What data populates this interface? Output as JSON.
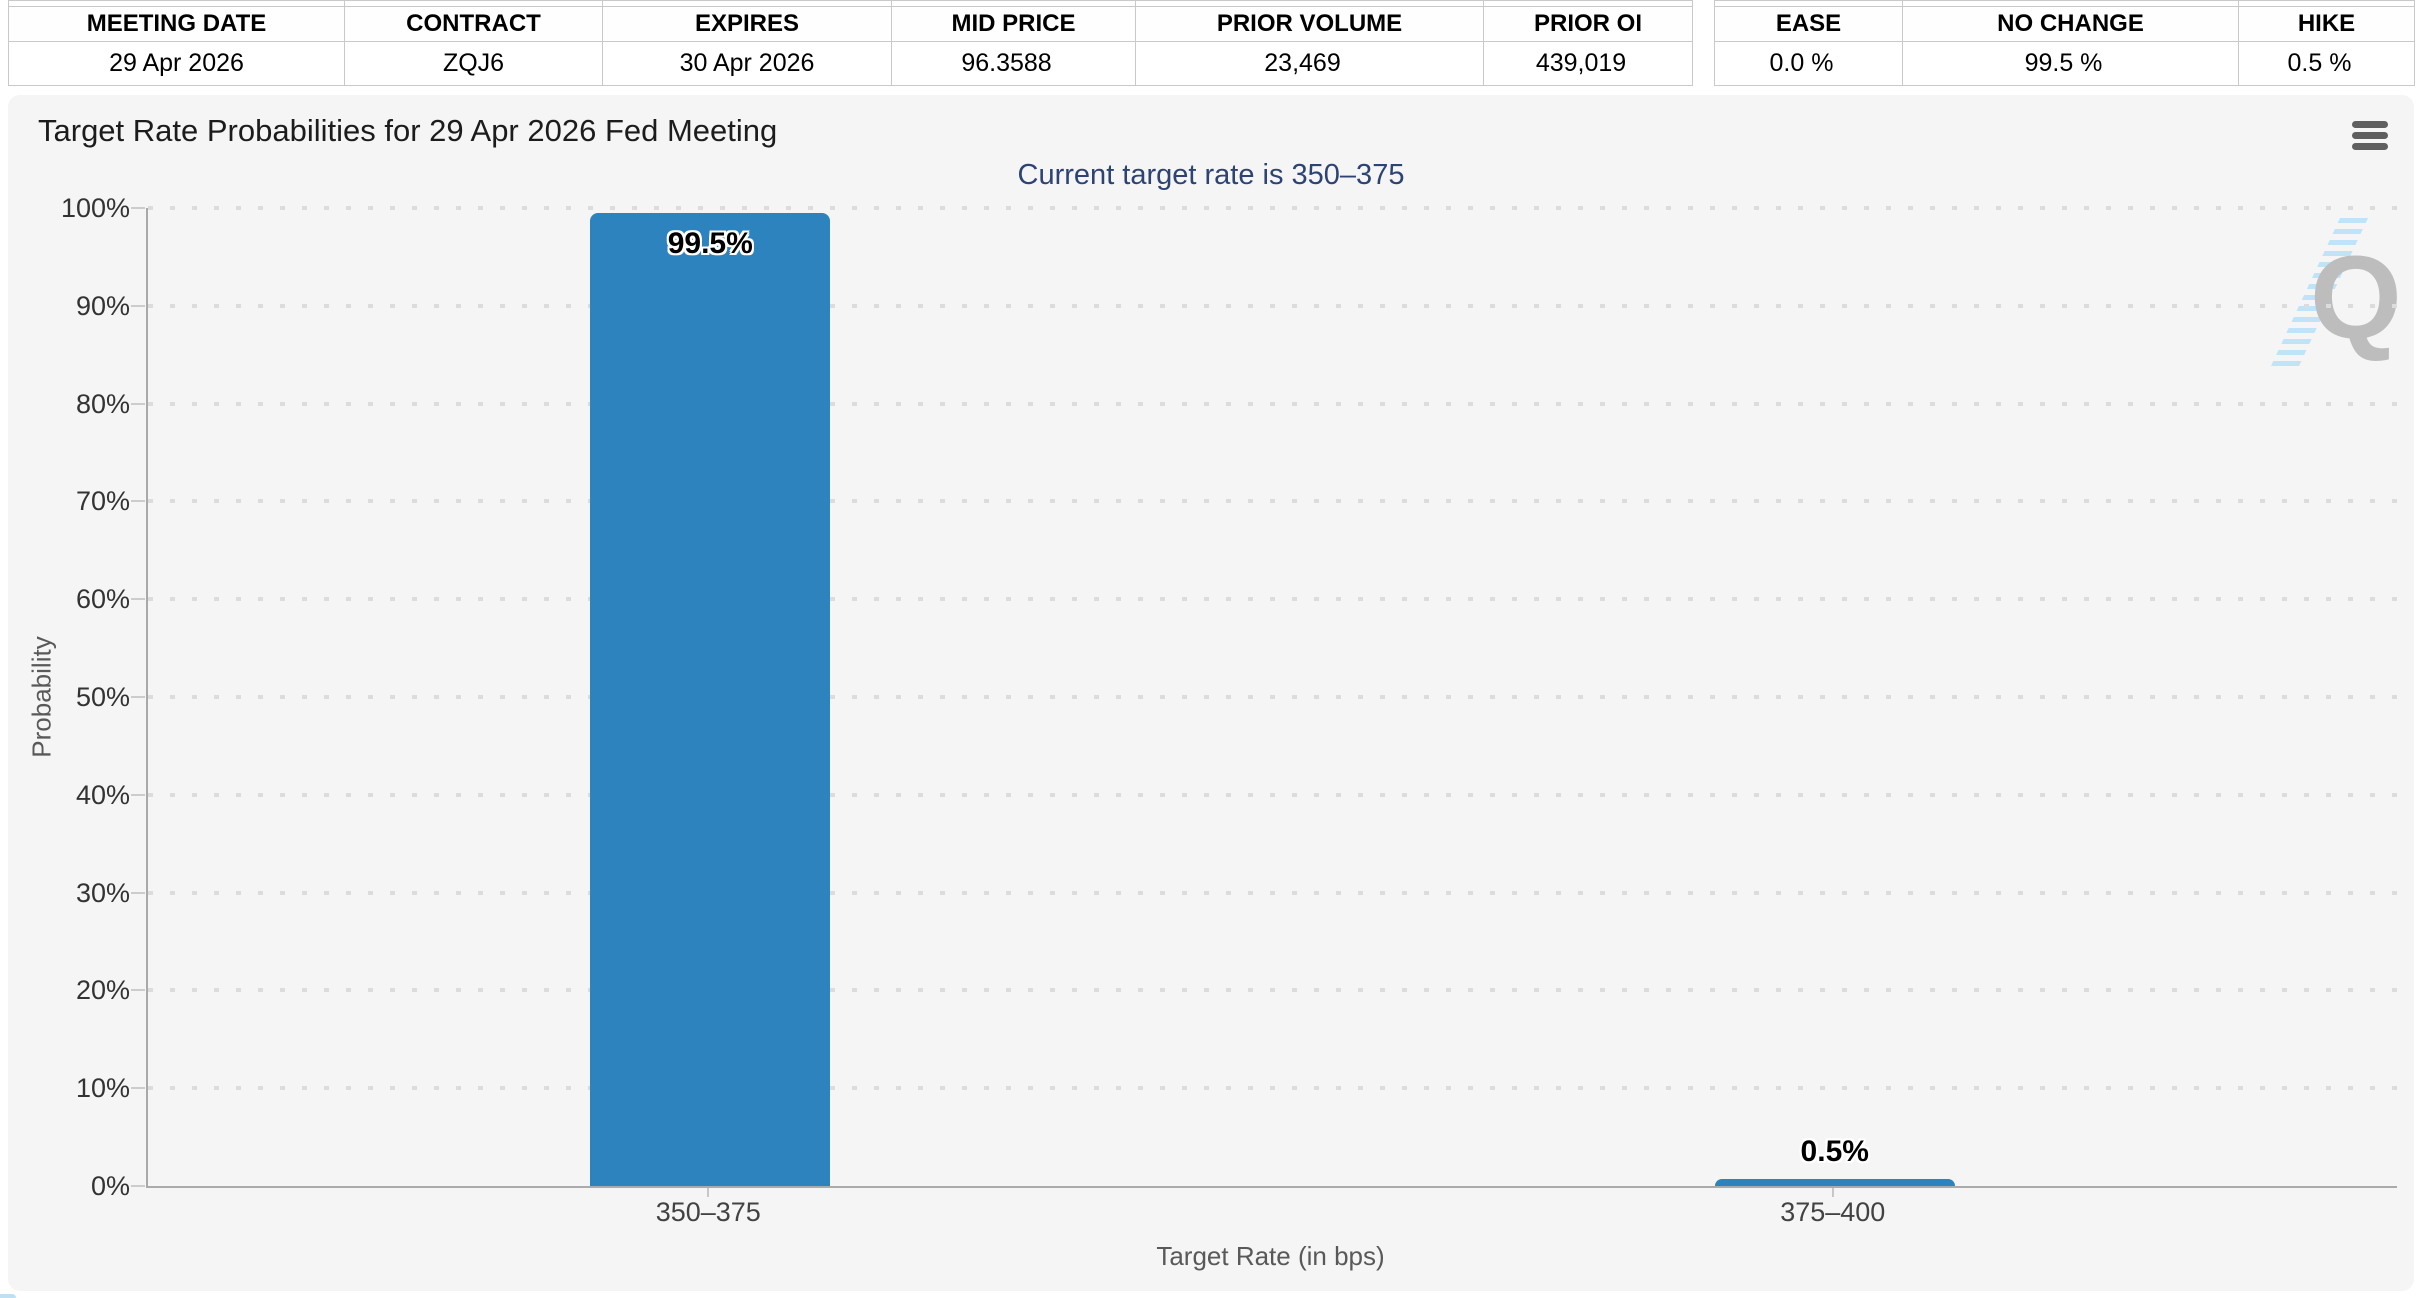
{
  "tables": {
    "quote": {
      "headers": [
        "MEETING DATE",
        "CONTRACT",
        "EXPIRES",
        "MID PRICE",
        "PRIOR VOLUME",
        "PRIOR OI"
      ],
      "values": [
        "29 Apr 2026",
        "ZQJ6",
        "30 Apr 2026",
        "96.3588",
        "23,469",
        "439,019"
      ]
    },
    "probability": {
      "headers": [
        "EASE",
        "NO CHANGE",
        "HIKE"
      ],
      "values": [
        "0.0 %",
        "99.5 %",
        "0.5 %"
      ]
    }
  },
  "chart_data": {
    "type": "bar",
    "title": "Target Rate Probabilities for 29 Apr 2026 Fed Meeting",
    "subtitle": "Current target rate is 350–375",
    "categories": [
      "350–375",
      "375–400"
    ],
    "values": [
      99.5,
      0.5
    ],
    "bar_labels": [
      "99.5%",
      "0.5%"
    ],
    "xlabel": "Target Rate (in bps)",
    "ylabel": "Probability",
    "ylim": [
      0,
      100
    ],
    "ytick_step": 10,
    "ytick_labels": [
      "0%",
      "10%",
      "20%",
      "30%",
      "40%",
      "50%",
      "60%",
      "70%",
      "80%",
      "90%",
      "100%"
    ],
    "grid": "dotted-horizontal",
    "legend": "none",
    "bar_color": "#2c83be",
    "subtitle_color": "#2d4373"
  },
  "icons": {
    "menu": "hamburger-menu",
    "watermark_letter": "Q"
  }
}
